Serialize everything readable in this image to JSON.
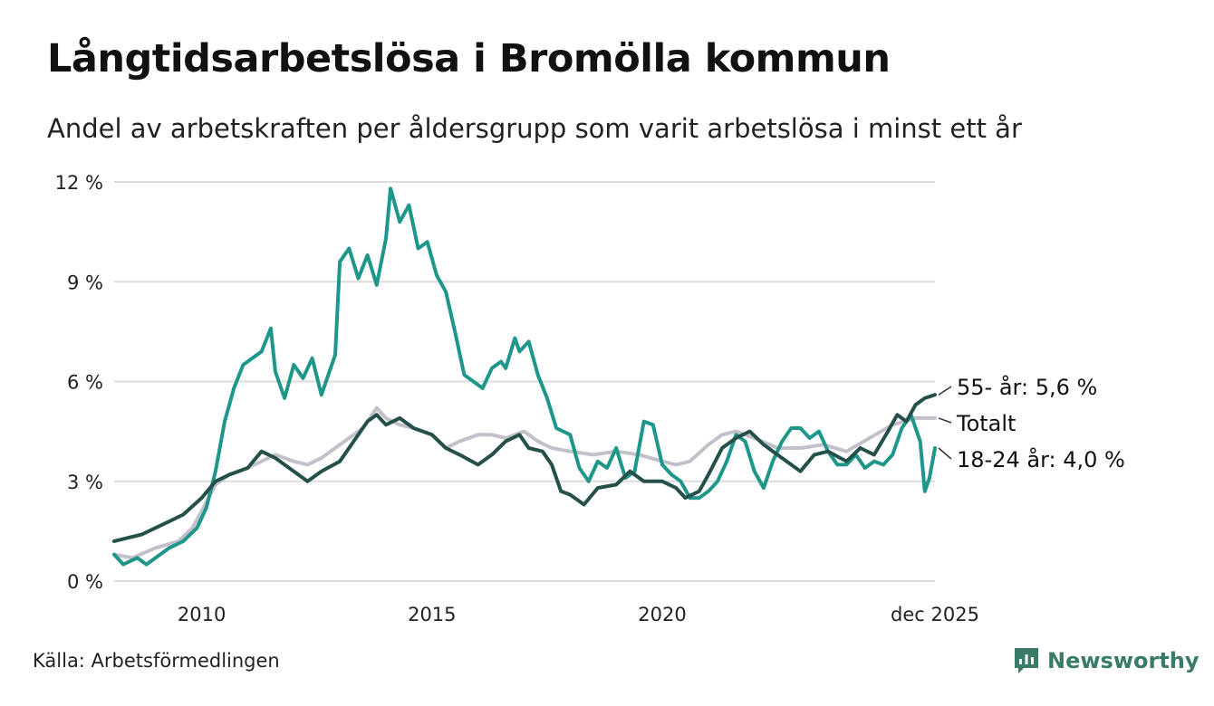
{
  "header": {
    "title": "Långtidsarbetslösa i Bromölla kommun",
    "subtitle": "Andel av arbetskraften per åldersgrupp som varit arbetslösa i minst ett år"
  },
  "footer": {
    "source": "Källa: Arbetsförmedlingen",
    "brand": "Newsworthy"
  },
  "chart_data": {
    "type": "line",
    "title": "Långtidsarbetslösa i Bromölla kommun",
    "xlabel": "",
    "ylabel": "",
    "ylim": [
      0,
      12
    ],
    "xlim": [
      2008.1,
      2025.92
    ],
    "y_ticks": [
      {
        "value": 0,
        "label": "0 %"
      },
      {
        "value": 3,
        "label": "3 %"
      },
      {
        "value": 6,
        "label": "6 %"
      },
      {
        "value": 9,
        "label": "9 %"
      },
      {
        "value": 12,
        "label": "12 %"
      }
    ],
    "x_ticks": [
      {
        "value": 2010,
        "label": "2010"
      },
      {
        "value": 2015,
        "label": "2015"
      },
      {
        "value": 2020,
        "label": "2020"
      },
      {
        "value": 2025.92,
        "label": "dec 2025"
      }
    ],
    "grid": true,
    "series": [
      {
        "name": "Totalt",
        "label": "Totalt",
        "color": "#c3c0cc",
        "points": [
          [
            2008.1,
            0.8
          ],
          [
            2008.5,
            0.7
          ],
          [
            2009.0,
            1.0
          ],
          [
            2009.5,
            1.2
          ],
          [
            2009.8,
            1.6
          ],
          [
            2010.0,
            2.1
          ],
          [
            2010.3,
            2.9
          ],
          [
            2010.6,
            3.2
          ],
          [
            2011.0,
            3.4
          ],
          [
            2011.3,
            3.6
          ],
          [
            2011.6,
            3.8
          ],
          [
            2012.0,
            3.6
          ],
          [
            2012.3,
            3.5
          ],
          [
            2012.6,
            3.7
          ],
          [
            2012.9,
            4.0
          ],
          [
            2013.2,
            4.3
          ],
          [
            2013.5,
            4.6
          ],
          [
            2013.7,
            5.0
          ],
          [
            2013.8,
            5.2
          ],
          [
            2014.0,
            4.9
          ],
          [
            2014.3,
            4.7
          ],
          [
            2014.6,
            4.6
          ],
          [
            2015.0,
            4.4
          ],
          [
            2015.3,
            4.0
          ],
          [
            2015.6,
            4.2
          ],
          [
            2016.0,
            4.4
          ],
          [
            2016.3,
            4.4
          ],
          [
            2016.6,
            4.3
          ],
          [
            2017.0,
            4.5
          ],
          [
            2017.3,
            4.2
          ],
          [
            2017.6,
            4.0
          ],
          [
            2018.0,
            3.9
          ],
          [
            2018.5,
            3.8
          ],
          [
            2019.0,
            3.9
          ],
          [
            2019.5,
            3.8
          ],
          [
            2020.0,
            3.6
          ],
          [
            2020.3,
            3.5
          ],
          [
            2020.6,
            3.6
          ],
          [
            2021.0,
            4.1
          ],
          [
            2021.3,
            4.4
          ],
          [
            2021.6,
            4.5
          ],
          [
            2022.0,
            4.3
          ],
          [
            2022.5,
            4.0
          ],
          [
            2023.0,
            4.0
          ],
          [
            2023.5,
            4.1
          ],
          [
            2024.0,
            3.9
          ],
          [
            2024.5,
            4.3
          ],
          [
            2025.0,
            4.7
          ],
          [
            2025.5,
            4.9
          ],
          [
            2025.92,
            4.9
          ]
        ]
      },
      {
        "name": "18-24 år",
        "label": "18-24 år: 4,0 %",
        "color": "#1e978a",
        "points": [
          [
            2008.1,
            0.8
          ],
          [
            2008.3,
            0.5
          ],
          [
            2008.6,
            0.7
          ],
          [
            2008.8,
            0.5
          ],
          [
            2009.0,
            0.7
          ],
          [
            2009.3,
            1.0
          ],
          [
            2009.6,
            1.2
          ],
          [
            2009.9,
            1.6
          ],
          [
            2010.1,
            2.2
          ],
          [
            2010.3,
            3.3
          ],
          [
            2010.5,
            4.8
          ],
          [
            2010.7,
            5.8
          ],
          [
            2010.9,
            6.5
          ],
          [
            2011.1,
            6.7
          ],
          [
            2011.3,
            6.9
          ],
          [
            2011.5,
            7.6
          ],
          [
            2011.6,
            6.3
          ],
          [
            2011.8,
            5.5
          ],
          [
            2012.0,
            6.5
          ],
          [
            2012.2,
            6.1
          ],
          [
            2012.4,
            6.7
          ],
          [
            2012.6,
            5.6
          ],
          [
            2012.9,
            6.8
          ],
          [
            2013.0,
            9.6
          ],
          [
            2013.2,
            10.0
          ],
          [
            2013.4,
            9.1
          ],
          [
            2013.6,
            9.8
          ],
          [
            2013.8,
            8.9
          ],
          [
            2014.0,
            10.3
          ],
          [
            2014.1,
            11.8
          ],
          [
            2014.3,
            10.8
          ],
          [
            2014.5,
            11.3
          ],
          [
            2014.7,
            10.0
          ],
          [
            2014.9,
            10.2
          ],
          [
            2015.1,
            9.2
          ],
          [
            2015.3,
            8.7
          ],
          [
            2015.5,
            7.5
          ],
          [
            2015.7,
            6.2
          ],
          [
            2015.9,
            6.0
          ],
          [
            2016.1,
            5.8
          ],
          [
            2016.3,
            6.4
          ],
          [
            2016.5,
            6.6
          ],
          [
            2016.6,
            6.4
          ],
          [
            2016.8,
            7.3
          ],
          [
            2016.9,
            6.9
          ],
          [
            2017.1,
            7.2
          ],
          [
            2017.3,
            6.2
          ],
          [
            2017.5,
            5.5
          ],
          [
            2017.7,
            4.6
          ],
          [
            2018.0,
            4.4
          ],
          [
            2018.2,
            3.4
          ],
          [
            2018.4,
            3.0
          ],
          [
            2018.6,
            3.6
          ],
          [
            2018.8,
            3.4
          ],
          [
            2019.0,
            4.0
          ],
          [
            2019.2,
            3.1
          ],
          [
            2019.4,
            3.3
          ],
          [
            2019.6,
            4.8
          ],
          [
            2019.8,
            4.7
          ],
          [
            2020.0,
            3.5
          ],
          [
            2020.2,
            3.2
          ],
          [
            2020.4,
            3.0
          ],
          [
            2020.6,
            2.5
          ],
          [
            2020.8,
            2.5
          ],
          [
            2021.0,
            2.7
          ],
          [
            2021.2,
            3.0
          ],
          [
            2021.4,
            3.6
          ],
          [
            2021.6,
            4.4
          ],
          [
            2021.8,
            4.2
          ],
          [
            2022.0,
            3.3
          ],
          [
            2022.2,
            2.8
          ],
          [
            2022.4,
            3.6
          ],
          [
            2022.6,
            4.2
          ],
          [
            2022.8,
            4.6
          ],
          [
            2023.0,
            4.6
          ],
          [
            2023.2,
            4.3
          ],
          [
            2023.4,
            4.5
          ],
          [
            2023.6,
            3.9
          ],
          [
            2023.8,
            3.5
          ],
          [
            2024.0,
            3.5
          ],
          [
            2024.2,
            3.8
          ],
          [
            2024.4,
            3.4
          ],
          [
            2024.6,
            3.6
          ],
          [
            2024.8,
            3.5
          ],
          [
            2025.0,
            3.8
          ],
          [
            2025.2,
            4.6
          ],
          [
            2025.4,
            5.0
          ],
          [
            2025.6,
            4.2
          ],
          [
            2025.7,
            2.7
          ],
          [
            2025.8,
            3.1
          ],
          [
            2025.92,
            4.0
          ]
        ]
      },
      {
        "name": "55- år",
        "label": "55- år: 5,6 %",
        "color": "#25504a",
        "points": [
          [
            2008.1,
            1.2
          ],
          [
            2008.4,
            1.3
          ],
          [
            2008.7,
            1.4
          ],
          [
            2009.0,
            1.6
          ],
          [
            2009.3,
            1.8
          ],
          [
            2009.6,
            2.0
          ],
          [
            2010.0,
            2.5
          ],
          [
            2010.3,
            3.0
          ],
          [
            2010.6,
            3.2
          ],
          [
            2011.0,
            3.4
          ],
          [
            2011.3,
            3.9
          ],
          [
            2011.6,
            3.7
          ],
          [
            2012.0,
            3.3
          ],
          [
            2012.3,
            3.0
          ],
          [
            2012.6,
            3.3
          ],
          [
            2013.0,
            3.6
          ],
          [
            2013.3,
            4.2
          ],
          [
            2013.6,
            4.8
          ],
          [
            2013.8,
            5.0
          ],
          [
            2014.0,
            4.7
          ],
          [
            2014.3,
            4.9
          ],
          [
            2014.6,
            4.6
          ],
          [
            2015.0,
            4.4
          ],
          [
            2015.3,
            4.0
          ],
          [
            2015.6,
            3.8
          ],
          [
            2016.0,
            3.5
          ],
          [
            2016.3,
            3.8
          ],
          [
            2016.6,
            4.2
          ],
          [
            2016.9,
            4.4
          ],
          [
            2017.1,
            4.0
          ],
          [
            2017.4,
            3.9
          ],
          [
            2017.6,
            3.5
          ],
          [
            2017.8,
            2.7
          ],
          [
            2018.0,
            2.6
          ],
          [
            2018.3,
            2.3
          ],
          [
            2018.6,
            2.8
          ],
          [
            2019.0,
            2.9
          ],
          [
            2019.3,
            3.3
          ],
          [
            2019.6,
            3.0
          ],
          [
            2020.0,
            3.0
          ],
          [
            2020.3,
            2.8
          ],
          [
            2020.5,
            2.5
          ],
          [
            2020.8,
            2.7
          ],
          [
            2021.0,
            3.2
          ],
          [
            2021.3,
            4.0
          ],
          [
            2021.6,
            4.3
          ],
          [
            2021.9,
            4.5
          ],
          [
            2022.2,
            4.1
          ],
          [
            2022.5,
            3.8
          ],
          [
            2022.8,
            3.5
          ],
          [
            2023.0,
            3.3
          ],
          [
            2023.3,
            3.8
          ],
          [
            2023.6,
            3.9
          ],
          [
            2024.0,
            3.6
          ],
          [
            2024.3,
            4.0
          ],
          [
            2024.6,
            3.8
          ],
          [
            2024.9,
            4.5
          ],
          [
            2025.1,
            5.0
          ],
          [
            2025.3,
            4.8
          ],
          [
            2025.5,
            5.3
          ],
          [
            2025.7,
            5.5
          ],
          [
            2025.92,
            5.6
          ]
        ]
      }
    ]
  }
}
